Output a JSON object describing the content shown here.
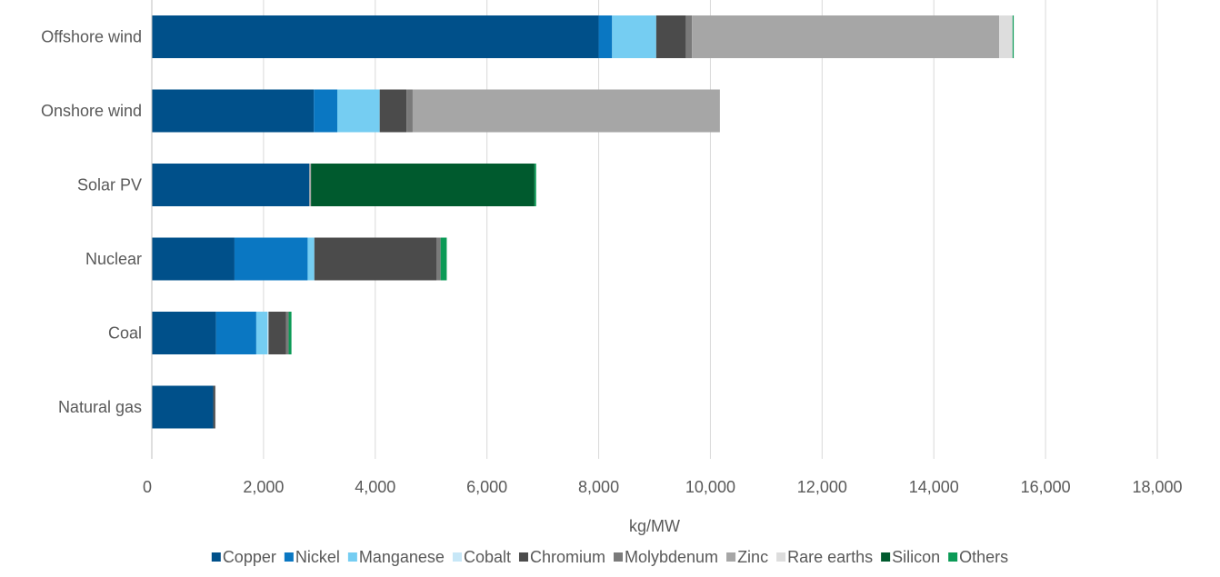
{
  "chart_data": {
    "type": "bar",
    "orientation": "horizontal",
    "stacked": true,
    "title": "",
    "xlabel": "kg/MW",
    "ylabel": "",
    "xlim": [
      0,
      18000
    ],
    "x_ticks": [
      0,
      2000,
      4000,
      6000,
      8000,
      10000,
      12000,
      14000,
      16000,
      18000
    ],
    "x_tick_labels": [
      "0",
      "2,000",
      "4,000",
      "6,000",
      "8,000",
      "10,000",
      "12,000",
      "14,000",
      "16,000",
      "18,000"
    ],
    "grid": "vertical",
    "legend_position": "bottom",
    "categories": [
      "Offshore wind",
      "Onshore wind",
      "Solar PV",
      "Nuclear",
      "Coal",
      "Natural gas"
    ],
    "series": [
      {
        "name": "Copper",
        "color": "#00508A",
        "values": [
          8000,
          2900,
          2820,
          1480,
          1150,
          1100
        ]
      },
      {
        "name": "Nickel",
        "color": "#0A77C2",
        "values": [
          240,
          420,
          0,
          1310,
          720,
          0
        ]
      },
      {
        "name": "Manganese",
        "color": "#75CDF2",
        "values": [
          790,
          760,
          0,
          120,
          200,
          0
        ]
      },
      {
        "name": "Cobalt",
        "color": "#C7E7F7",
        "values": [
          0,
          0,
          0,
          0,
          20,
          0
        ]
      },
      {
        "name": "Chromium",
        "color": "#4B4B4B",
        "values": [
          530,
          480,
          0,
          2190,
          310,
          30
        ]
      },
      {
        "name": "Molybdenum",
        "color": "#7A7A7A",
        "values": [
          110,
          110,
          0,
          70,
          50,
          10
        ]
      },
      {
        "name": "Zinc",
        "color": "#A6A6A6",
        "values": [
          5500,
          5500,
          30,
          0,
          0,
          0
        ]
      },
      {
        "name": "Rare earths",
        "color": "#DDDDDD",
        "values": [
          240,
          0,
          0,
          0,
          0,
          0
        ]
      },
      {
        "name": "Silicon",
        "color": "#005A2E",
        "values": [
          0,
          0,
          4000,
          0,
          0,
          0
        ]
      },
      {
        "name": "Others",
        "color": "#0B9A56",
        "values": [
          20,
          0,
          30,
          110,
          50,
          0
        ]
      }
    ]
  }
}
